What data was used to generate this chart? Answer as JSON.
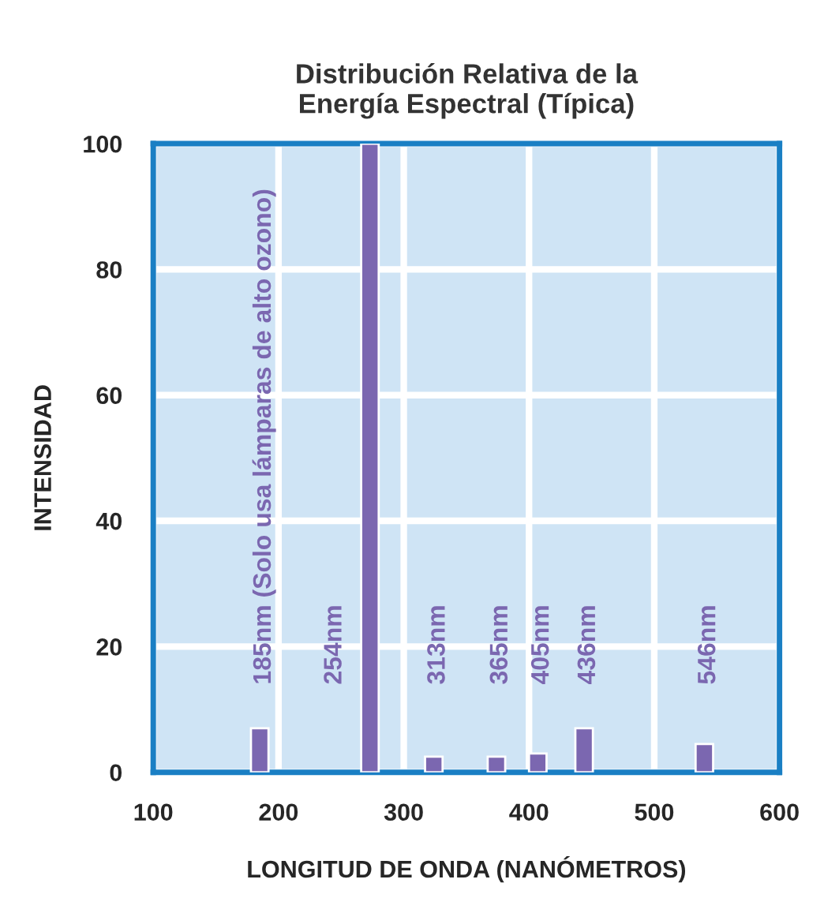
{
  "chart_data": {
    "type": "bar",
    "title": "Distribución Relativa de la\nEnergía Espectral (Típica)",
    "xlabel": "LONGITUD DE ONDA (NANÓMETROS)",
    "ylabel": "INTENSIDAD",
    "x": [
      185,
      273,
      324,
      374,
      407,
      444,
      540
    ],
    "series": [
      {
        "color": "#7b67b0",
        "values": [
          7,
          100,
          2.5,
          2.5,
          3,
          7,
          4.5
        ]
      }
    ],
    "annotations": [
      "185nm (Solo usa lámparas de alto ozono)",
      "254nm",
      "313nm",
      "365nm",
      "405nm",
      "436nm",
      "546nm"
    ],
    "xlim": [
      100,
      600
    ],
    "xticks": [
      100,
      200,
      300,
      400,
      500,
      600
    ],
    "ylim": [
      0,
      100
    ],
    "yticks": [
      0,
      20,
      40,
      60,
      80,
      100
    ],
    "grid": true
  }
}
